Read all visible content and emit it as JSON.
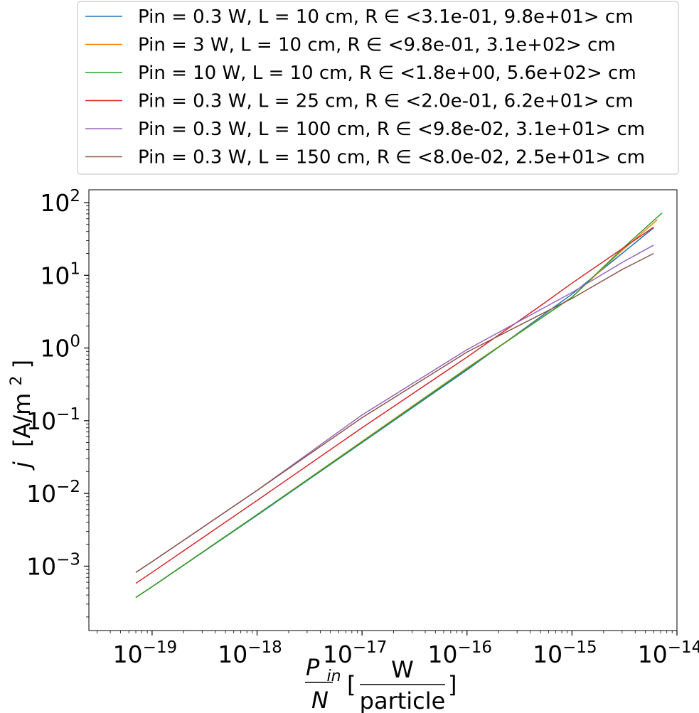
{
  "chart_data": {
    "type": "line",
    "xscale": "log",
    "yscale": "log",
    "xlim": [
      2.5e-20,
      1e-14
    ],
    "ylim": [
      0.00013,
      150
    ],
    "grid": false,
    "legend_placement": "top (above plot)",
    "xticks": [
      {
        "base": "10",
        "exp": "−19",
        "value": 1e-19
      },
      {
        "base": "10",
        "exp": "−18",
        "value": 1e-18
      },
      {
        "base": "10",
        "exp": "−17",
        "value": 1e-17
      },
      {
        "base": "10",
        "exp": "−16",
        "value": 1e-16
      },
      {
        "base": "10",
        "exp": "−15",
        "value": 1e-15
      },
      {
        "base": "10",
        "exp": "−14",
        "value": 1e-14
      }
    ],
    "yticks": [
      {
        "base": "10",
        "exp": "−3",
        "value": 0.001
      },
      {
        "base": "10",
        "exp": "−2",
        "value": 0.01
      },
      {
        "base": "10",
        "exp": "−1",
        "value": 0.1
      },
      {
        "base": "10",
        "exp": "0",
        "value": 1
      },
      {
        "base": "10",
        "exp": "1",
        "value": 10
      },
      {
        "base": "10",
        "exp": "2",
        "value": 100
      }
    ],
    "xlabel": {
      "numerator": "P",
      "numerator_sub": "in",
      "denominator": "N",
      "unit_numerator": "W",
      "unit_denominator": "particle",
      "open_bracket": "[",
      "close_bracket": "]"
    },
    "ylabel": {
      "symbol": "j",
      "unit_prefix": "[A/m",
      "unit_exp": "2",
      "unit_suffix": "]"
    },
    "series": [
      {
        "name": "Pin = 0.3 W, L = 10 cm, R ∈ <3.1e-01, 9.8e+01> cm",
        "color": "#1f77b4",
        "x": [
          7e-20,
          1e-19,
          1e-18,
          1e-17,
          1e-16,
          1e-15,
          3e-15,
          6e-15
        ],
        "y": [
          0.00037,
          0.00052,
          0.005,
          0.05,
          0.5,
          5.5,
          20.0,
          45.0
        ]
      },
      {
        "name": "Pin = 3 W, L = 10 cm, R ∈ <9.8e-01, 3.1e+02> cm",
        "color": "#ff7f0e",
        "x": [
          7e-20,
          1e-19,
          1e-18,
          1e-17,
          1e-16,
          1e-15,
          3e-15,
          6.5e-15
        ],
        "y": [
          0.00037,
          0.00052,
          0.0051,
          0.052,
          0.53,
          5.0,
          22.0,
          58.0
        ]
      },
      {
        "name": "Pin = 10 W, L = 10 cm, R ∈ <1.8e+00, 5.6e+02> cm",
        "color": "#2ca02c",
        "x": [
          7e-20,
          1e-19,
          1e-18,
          1e-17,
          1e-16,
          1e-15,
          3e-15,
          7.2e-15
        ],
        "y": [
          0.00037,
          0.00052,
          0.0051,
          0.051,
          0.52,
          5.0,
          23.0,
          72.0
        ]
      },
      {
        "name": "Pin = 0.3 W, L = 25 cm, R ∈ <2.0e-01, 6.2e+01> cm",
        "color": "#d62728",
        "x": [
          7e-20,
          1e-19,
          1e-18,
          1e-17,
          1e-16,
          5e-16,
          1e-15,
          6e-15
        ],
        "y": [
          0.00058,
          0.00082,
          0.008,
          0.08,
          0.75,
          3.8,
          7.8,
          46.0
        ]
      },
      {
        "name": "Pin = 0.3 W, L = 100 cm, R ∈ <9.8e-02, 3.1e+01> cm",
        "color": "#9467bd",
        "x": [
          7e-20,
          1e-19,
          1e-18,
          1e-17,
          1e-16,
          1e-15,
          3e-15,
          6e-15
        ],
        "y": [
          0.00082,
          0.00115,
          0.011,
          0.12,
          0.95,
          5.8,
          15.0,
          26.0
        ]
      },
      {
        "name": "Pin = 0.3 W, L = 150 cm, R ∈ <8.0e-02, 2.5e+01> cm",
        "color": "#8c564b",
        "x": [
          7e-20,
          1e-19,
          1e-18,
          1e-17,
          1e-16,
          1e-15,
          3e-15,
          6e-15
        ],
        "y": [
          0.00082,
          0.00115,
          0.011,
          0.11,
          0.88,
          4.8,
          12.0,
          20.0
        ]
      }
    ]
  }
}
